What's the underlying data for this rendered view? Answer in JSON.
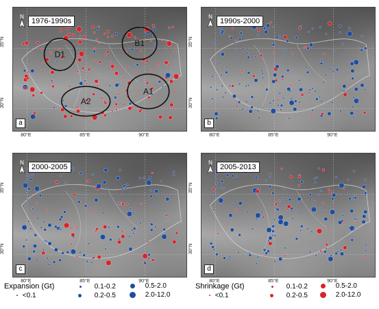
{
  "colors": {
    "expansion": "#1f4e9e",
    "shrinkage": "#d8232a",
    "outline": "#222222"
  },
  "panels": [
    {
      "label": "a",
      "period": "1976-1990s",
      "dominant": "shrinkage",
      "seed": 11,
      "regions": [
        "D1",
        "B1",
        "A1",
        "A2"
      ],
      "lon_ticks": [
        "80°E",
        "85°E",
        "90°E"
      ],
      "lat_ticks": [
        "35°N",
        "30°N"
      ]
    },
    {
      "label": "b",
      "period": "1990s-2000",
      "dominant": "expansion",
      "seed": 23,
      "regions": [],
      "lon_ticks": [
        "80°E",
        "85°E",
        "90°E"
      ],
      "lat_ticks": [
        "35°N",
        "30°N"
      ]
    },
    {
      "label": "c",
      "period": "2000-2005",
      "dominant": "expansion",
      "seed": 37,
      "regions": [],
      "lon_ticks": [
        "80°E",
        "85°E",
        "90°E"
      ],
      "lat_ticks": [
        "35°N",
        "30°N"
      ]
    },
    {
      "label": "d",
      "period": "2005-2013",
      "dominant": "expansion",
      "seed": 51,
      "regions": [],
      "lon_ticks": [
        "80°E",
        "85°E",
        "90°E"
      ],
      "lat_ticks": [
        "35°N",
        "30°N"
      ]
    }
  ],
  "north_label": "N",
  "legend_expansion": {
    "title": "Expansion (Gt)",
    "classes": [
      "<0.1",
      "0.1-0.2",
      "0.2-0.5",
      "0.5-2.0",
      "2.0-12.0"
    ]
  },
  "legend_shrinkage": {
    "title": "Shrinkage (Gt)",
    "classes": [
      "<0.1",
      "0.1-0.2",
      "0.2-0.5",
      "0.5-2.0",
      "2.0-12.0"
    ]
  }
}
